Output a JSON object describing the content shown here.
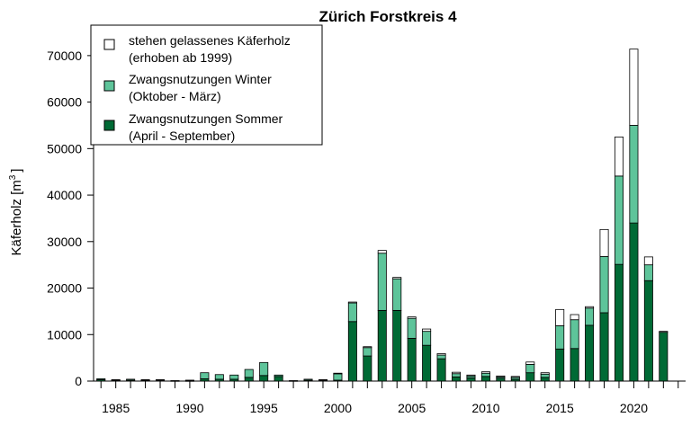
{
  "chart_data": {
    "type": "bar",
    "stacked": true,
    "title": "Zürich Forstkreis 4",
    "ylabel": "Käferholz [m",
    "ylabel_sup": "3",
    "ylabel_end": "]",
    "ylim": [
      0,
      75000
    ],
    "yticks": [
      0,
      10000,
      20000,
      30000,
      40000,
      50000,
      60000,
      70000
    ],
    "xlim": [
      1983.5,
      2023.5
    ],
    "xticks": [
      1985,
      1990,
      1995,
      2000,
      2005,
      2010,
      2015,
      2020
    ],
    "x": [
      1984,
      1985,
      1986,
      1987,
      1988,
      1989,
      1990,
      1991,
      1992,
      1993,
      1994,
      1995,
      1996,
      1997,
      1998,
      1999,
      2000,
      2001,
      2002,
      2003,
      2004,
      2005,
      2006,
      2007,
      2008,
      2009,
      2010,
      2011,
      2012,
      2013,
      2014,
      2015,
      2016,
      2017,
      2018,
      2019,
      2020,
      2021,
      2022
    ],
    "series": [
      {
        "name": "Zwangsnutzungen Sommer",
        "name_line2": "(April - September)",
        "color": "#006a35",
        "values": [
          300,
          200,
          200,
          200,
          200,
          100,
          100,
          500,
          400,
          400,
          800,
          1200,
          1000,
          100,
          200,
          200,
          200,
          12800,
          5400,
          15200,
          15200,
          9200,
          7700,
          4800,
          900,
          700,
          1000,
          600,
          400,
          1800,
          800,
          6900,
          7000,
          12000,
          14700,
          25100,
          34000,
          21600,
          10500
        ]
      },
      {
        "name": "Zwangsnutzungen Winter",
        "name_line2": "(Oktober - März)",
        "color": "#5ec49a",
        "values": [
          200,
          100,
          200,
          100,
          100,
          0,
          100,
          1300,
          1000,
          900,
          1700,
          2800,
          300,
          0,
          200,
          100,
          1400,
          4000,
          1800,
          12300,
          6800,
          4300,
          3000,
          800,
          700,
          400,
          700,
          300,
          400,
          1800,
          700,
          5000,
          6200,
          3700,
          12100,
          19000,
          21000,
          3400,
          0
        ]
      },
      {
        "name": "stehen gelassenes Käferholz",
        "name_line2": "(erhoben ab 1999)",
        "color": "#ffffff",
        "values": [
          0,
          0,
          0,
          0,
          0,
          0,
          0,
          0,
          0,
          0,
          0,
          0,
          0,
          0,
          0,
          0,
          100,
          200,
          200,
          600,
          300,
          300,
          500,
          300,
          300,
          200,
          300,
          200,
          200,
          500,
          300,
          3500,
          1100,
          300,
          5800,
          8400,
          16400,
          1700,
          200
        ]
      }
    ],
    "legend_position": "top-left",
    "grid": false
  }
}
